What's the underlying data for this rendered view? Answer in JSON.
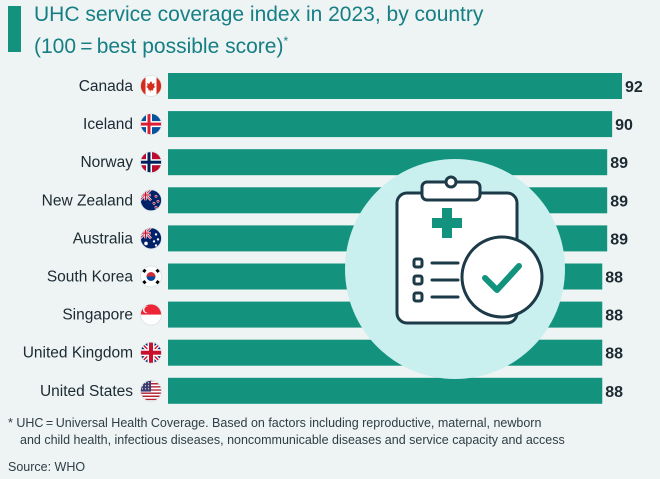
{
  "header": {
    "title_line1": "UHC service coverage index in 2023, by country",
    "title_line2": "(100 = best possible score)",
    "title_mark": "*"
  },
  "chart_data": {
    "type": "bar",
    "orientation": "horizontal",
    "title": "UHC service coverage index in 2023, by country",
    "subtitle": "(100 = best possible score)",
    "categories": [
      "Canada",
      "Iceland",
      "Norway",
      "New Zealand",
      "Australia",
      "South Korea",
      "Singapore",
      "United Kingdom",
      "United States"
    ],
    "flags": [
      "canada-flag-icon",
      "iceland-flag-icon",
      "norway-flag-icon",
      "new-zealand-flag-icon",
      "australia-flag-icon",
      "south-korea-flag-icon",
      "singapore-flag-icon",
      "united-kingdom-flag-icon",
      "united-states-flag-icon"
    ],
    "values": [
      92,
      90,
      89,
      89,
      89,
      88,
      88,
      88,
      88
    ],
    "xlim": [
      0,
      92
    ],
    "bar_color": "#13937e",
    "xlabel": "",
    "ylabel": "",
    "annotation_icon": "clipboard-checkmark-icon"
  },
  "footer": {
    "footnote_line1": "* UHC = Universal Health Coverage. Based on factors including reproductive, maternal, newborn",
    "footnote_line2": "and child health, infectious diseases, noncommunicable diseases and service capacity and access",
    "source": "Source: WHO"
  }
}
